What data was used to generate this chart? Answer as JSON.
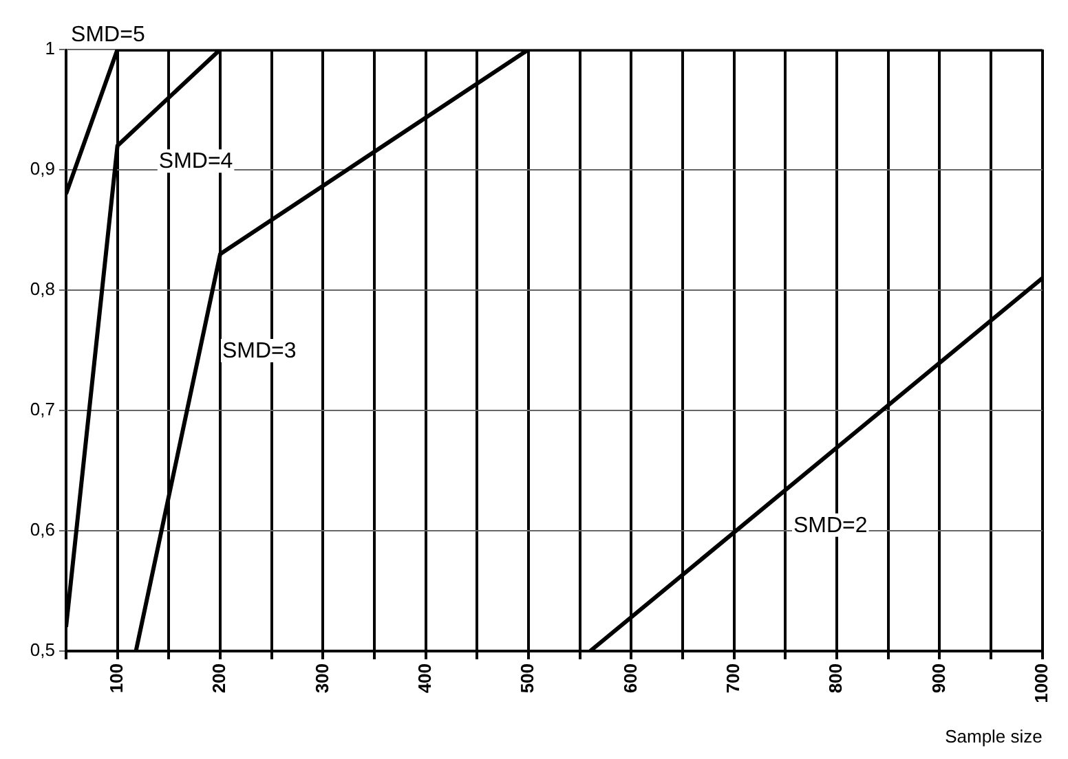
{
  "chart_data": {
    "type": "line",
    "xlabel": "Sample size",
    "xlim": [
      50,
      1000
    ],
    "xticks": [
      {
        "value": 50,
        "label": null
      },
      100,
      {
        "value": 150,
        "label": null
      },
      200,
      {
        "value": 250,
        "label": null
      },
      300,
      {
        "value": 350,
        "label": null
      },
      400,
      {
        "value": 450,
        "label": null
      },
      500,
      {
        "value": 550,
        "label": null
      },
      600,
      {
        "value": 650,
        "label": null
      },
      700,
      {
        "value": 750,
        "label": null
      },
      800,
      {
        "value": 850,
        "label": null
      },
      900,
      {
        "value": 950,
        "label": null
      },
      1000
    ],
    "ylim": [
      0.5,
      1
    ],
    "yticks": [
      {
        "value": 0.5,
        "label": "0,5"
      },
      {
        "value": 0.6,
        "label": "0,6"
      },
      {
        "value": 0.7,
        "label": "0,7"
      },
      {
        "value": 0.8,
        "label": "0,8"
      },
      {
        "value": 0.9,
        "label": "0,9"
      },
      1
    ],
    "grid": true,
    "legend": false,
    "marker": "none",
    "line_style": "solid",
    "series": [
      {
        "name": "SMD=5",
        "color": "#000000",
        "x": [
          50,
          100,
          1000
        ],
        "values": [
          0.88,
          1,
          1
        ]
      },
      {
        "name": "SMD=4",
        "color": "#000000",
        "x": [
          50,
          100,
          200,
          1000
        ],
        "values": [
          0.52,
          0.92,
          1,
          1
        ]
      },
      {
        "name": "SMD=3",
        "color": "#000000",
        "x": [
          118,
          200,
          500,
          1000
        ],
        "values": [
          0.5,
          0.83,
          1,
          1
        ]
      },
      {
        "name": "SMD=2",
        "color": "#000000",
        "x": [
          560,
          1000
        ],
        "values": [
          0.5,
          0.81
        ]
      }
    ]
  }
}
